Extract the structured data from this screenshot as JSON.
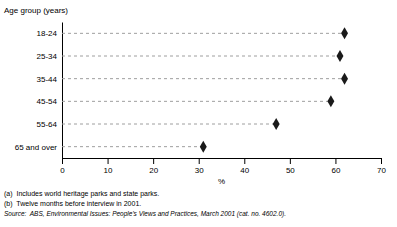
{
  "chart_data": {
    "type": "lollipop",
    "orientation": "horizontal",
    "y_label": "Age group (years)",
    "x_label": "%",
    "categories": [
      "18-24",
      "25-34",
      "35-44",
      "45-54",
      "55-64",
      "65 and over"
    ],
    "values": [
      62,
      61,
      62,
      59,
      47,
      31
    ],
    "color": "#1a1a1a",
    "marker": "diamond",
    "line_style": "dashed",
    "xlim": [
      0,
      70
    ],
    "xticks": [
      0,
      10,
      20,
      30,
      40,
      50,
      60,
      70
    ],
    "grid": false,
    "annotations": [
      "(a)  Includes world heritage parks and state parks.",
      "(b)  Twelve months before interview in 2001."
    ],
    "source": "Source:  ABS, Environmental Issues: People's Views and Practices, March 2001 (cat. no. 4602.0)."
  }
}
